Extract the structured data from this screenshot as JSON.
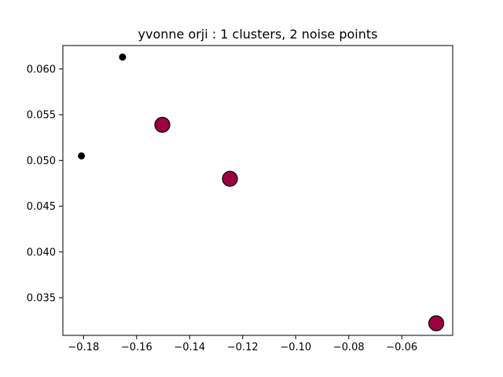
{
  "chart_data": {
    "type": "scatter",
    "title": "yvonne orji : 1 clusters, 2 noise points",
    "xlabel": "",
    "ylabel": "",
    "xlim": [
      -0.1878,
      -0.0408
    ],
    "ylim": [
      0.03088,
      0.06256
    ],
    "xticks": [
      -0.18,
      -0.16,
      -0.14,
      -0.12,
      -0.1,
      -0.08,
      -0.06
    ],
    "xtick_labels": [
      "−0.18",
      "−0.16",
      "−0.14",
      "−0.12",
      "−0.10",
      "−0.08",
      "−0.06"
    ],
    "yticks": [
      0.035,
      0.04,
      0.045,
      0.05,
      0.055,
      0.06
    ],
    "ytick_labels": [
      "0.035",
      "0.040",
      "0.045",
      "0.050",
      "0.055",
      "0.060"
    ],
    "grid": false,
    "series": [
      {
        "kind": "cluster",
        "color": "#9e0142",
        "edgecolor": "#000000",
        "points": [
          {
            "x": -0.1503,
            "y": 0.0539
          },
          {
            "x": -0.1248,
            "y": 0.048
          },
          {
            "x": -0.047,
            "y": 0.0322
          }
        ]
      },
      {
        "kind": "noise",
        "color": "#000000",
        "points": [
          {
            "x": -0.1653,
            "y": 0.0613
          },
          {
            "x": -0.1808,
            "y": 0.0505
          }
        ]
      }
    ]
  }
}
